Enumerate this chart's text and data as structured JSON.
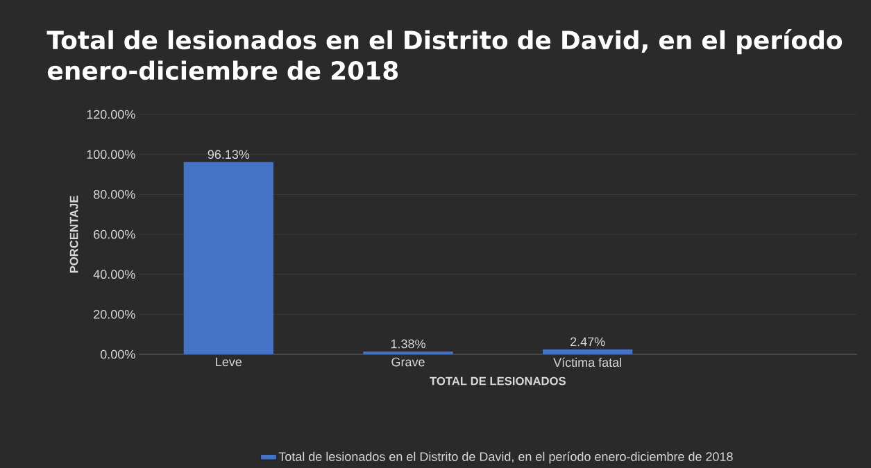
{
  "chart_data": {
    "type": "bar",
    "title": "Total de lesionados en el Distrito de David, en el período enero-diciembre de 2018",
    "xlabel": "TOTAL DE LESIONADOS",
    "ylabel": "PORCENTAJE",
    "categories": [
      "Leve",
      "Grave",
      "Víctima fatal",
      null
    ],
    "series": [
      {
        "name": "Total de lesionados en el Distrito de David, en el período enero-diciembre de 2018",
        "color": "#4472c4",
        "values": [
          96.13,
          1.38,
          2.47,
          null
        ],
        "value_labels": [
          "96.13%",
          "1.38%",
          "2.47%",
          null
        ]
      }
    ],
    "ylim": [
      0,
      120
    ],
    "yticks": [
      {
        "value": 0,
        "label": "0.00%"
      },
      {
        "value": 20,
        "label": "20.00%"
      },
      {
        "value": 40,
        "label": "40.00%"
      },
      {
        "value": 60,
        "label": "60.00%"
      },
      {
        "value": 80,
        "label": "80.00%"
      },
      {
        "value": 100,
        "label": "100.00%"
      },
      {
        "value": 120,
        "label": "120.00%"
      }
    ],
    "grid": "y",
    "legend": "bottom"
  }
}
